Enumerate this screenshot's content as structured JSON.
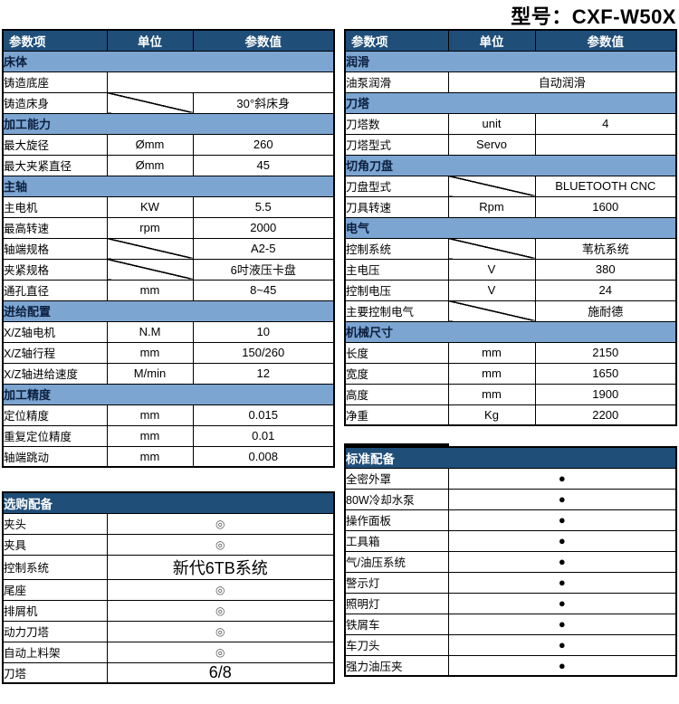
{
  "title": "型号：CXF-W50X",
  "colors": {
    "header_bg": "#1F4E79",
    "section_bg": "#7CA5D2",
    "border": "#000000",
    "optional_symbol": "#4d4d4d"
  },
  "symbols": {
    "optional": "◎",
    "standard": "●"
  },
  "tables": {
    "left_spec": {
      "columns": [
        "参数项",
        "单位",
        "参数值"
      ],
      "rows": [
        {
          "type": "section",
          "label": "床体"
        },
        {
          "type": "row",
          "label": "铸造底座",
          "merged": true,
          "value": ""
        },
        {
          "type": "row",
          "label": "铸造床身",
          "diagonal": true,
          "value": "30°斜床身"
        },
        {
          "type": "section",
          "label": "加工能力"
        },
        {
          "type": "row",
          "label": "最大旋径",
          "unit": "Ømm",
          "value": "260"
        },
        {
          "type": "row",
          "label": "最大夹紧直径",
          "unit": "Ømm",
          "value": "45"
        },
        {
          "type": "section",
          "label": "主轴"
        },
        {
          "type": "row",
          "label": "主电机",
          "unit": "KW",
          "value": "5.5"
        },
        {
          "type": "row",
          "label": "最高转速",
          "unit": "rpm",
          "value": "2000"
        },
        {
          "type": "row",
          "label": "轴端规格",
          "diagonal": true,
          "value": "A2-5"
        },
        {
          "type": "row",
          "label": "夹紧规格",
          "diagonal": true,
          "value": "6吋液压卡盘"
        },
        {
          "type": "row",
          "label": "通孔直径",
          "unit": "mm",
          "value": "8~45"
        },
        {
          "type": "section",
          "label": "进给配置"
        },
        {
          "type": "row",
          "label": "X/Z轴电机",
          "unit": "N.M",
          "value": "10"
        },
        {
          "type": "row",
          "label": "X/Z轴行程",
          "unit": "mm",
          "value": "150/260"
        },
        {
          "type": "row",
          "label": "X/Z轴进给速度",
          "unit": "M/min",
          "value": "12"
        },
        {
          "type": "section",
          "label": "加工精度"
        },
        {
          "type": "row",
          "label": "定位精度",
          "unit": "mm",
          "value": "0.015"
        },
        {
          "type": "row",
          "label": "重复定位精度",
          "unit": "mm",
          "value": "0.01"
        },
        {
          "type": "row",
          "label": "轴端跳动",
          "unit": "mm",
          "value": "0.008"
        }
      ]
    },
    "left_optional": {
      "title": "选购配备",
      "rows": [
        {
          "label": "夹头",
          "value": "◎"
        },
        {
          "label": "夹具",
          "value": "◎"
        },
        {
          "label": "控制系统",
          "value": "新代6TB系统",
          "big": true
        },
        {
          "label": "尾座",
          "value": "◎"
        },
        {
          "label": "排屑机",
          "value": "◎"
        },
        {
          "label": "动力刀塔",
          "value": "◎"
        },
        {
          "label": "自动上料架",
          "value": "◎"
        },
        {
          "label": "刀塔",
          "value": "6/8",
          "big": true
        }
      ]
    },
    "right_spec": {
      "columns": [
        "参数项",
        "单位",
        "参数值"
      ],
      "rows": [
        {
          "type": "section",
          "label": "润滑"
        },
        {
          "type": "row",
          "label": "油泵润滑",
          "merged": true,
          "value": "自动润滑"
        },
        {
          "type": "section",
          "label": "刀塔"
        },
        {
          "type": "row",
          "label": "刀塔数",
          "unit": "unit",
          "value": "4"
        },
        {
          "type": "row",
          "label": "刀塔型式",
          "unit": "Servo",
          "value": ""
        },
        {
          "type": "section",
          "label": "切角刀盘"
        },
        {
          "type": "row",
          "label": "刀盘型式",
          "diagonal": true,
          "value": "BLUETOOTH CNC"
        },
        {
          "type": "row",
          "label": "刀具转速",
          "unit": "Rpm",
          "value": "1600"
        },
        {
          "type": "section",
          "label": "电气"
        },
        {
          "type": "row",
          "label": "控制系统",
          "diagonal": true,
          "value": "苇杭系统"
        },
        {
          "type": "row",
          "label": "主电压",
          "unit": "V",
          "value": "380"
        },
        {
          "type": "row",
          "label": "控制电压",
          "unit": "V",
          "value": "24"
        },
        {
          "type": "row",
          "label": "主要控制电气",
          "diagonal": true,
          "value": "施耐德"
        },
        {
          "type": "section",
          "label": "机械尺寸"
        },
        {
          "type": "row",
          "label": "长度",
          "unit": "mm",
          "value": "2150"
        },
        {
          "type": "row",
          "label": "宽度",
          "unit": "mm",
          "value": "1650"
        },
        {
          "type": "row",
          "label": "高度",
          "unit": "mm",
          "value": "1900"
        },
        {
          "type": "row",
          "label": "净重",
          "unit": "Kg",
          "value": "2200"
        }
      ]
    },
    "right_standard": {
      "title": "标准配备",
      "rows": [
        {
          "label": "全密外罩",
          "value": "●"
        },
        {
          "label": "80W冷却水泵",
          "value": "●"
        },
        {
          "label": "操作面板",
          "value": "●"
        },
        {
          "label": "工具箱",
          "value": "●"
        },
        {
          "label": "气/油压系统",
          "value": "●"
        },
        {
          "label": "警示灯",
          "value": "●"
        },
        {
          "label": "照明灯",
          "value": "●"
        },
        {
          "label": "铁屑车",
          "value": "●"
        },
        {
          "label": "车刀头",
          "value": "●"
        },
        {
          "label": "强力油压夹",
          "value": "●"
        }
      ]
    }
  }
}
